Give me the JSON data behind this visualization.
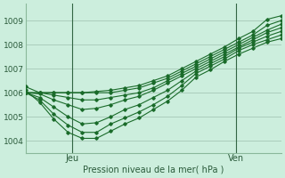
{
  "title": "Pression niveau de la mer( hPa )",
  "bg_color": "#cceedd",
  "grid_color": "#aaccbb",
  "line_color": "#1a6b2a",
  "vline_color": "#336644",
  "ylim": [
    1003.5,
    1009.7
  ],
  "xlim": [
    0,
    18
  ],
  "jeu_x": 3.3,
  "ven_x": 14.8,
  "series": [
    [
      1006.25,
      1006.0,
      1006.0,
      1006.0,
      1006.0,
      1006.05,
      1006.1,
      1006.2,
      1006.3,
      1006.5,
      1006.7,
      1007.0,
      1007.3,
      1007.6,
      1007.9,
      1008.25,
      1008.55,
      1009.05,
      1009.2
    ],
    [
      1006.0,
      1006.0,
      1006.0,
      1006.0,
      1006.0,
      1006.0,
      1006.0,
      1006.1,
      1006.2,
      1006.4,
      1006.6,
      1006.9,
      1007.2,
      1007.5,
      1007.8,
      1008.1,
      1008.4,
      1008.8,
      1009.0
    ],
    [
      1006.0,
      1006.0,
      1005.9,
      1005.8,
      1005.7,
      1005.7,
      1005.8,
      1005.9,
      1006.0,
      1006.2,
      1006.5,
      1006.8,
      1007.1,
      1007.4,
      1007.7,
      1008.0,
      1008.3,
      1008.6,
      1008.85
    ],
    [
      1006.0,
      1005.95,
      1005.7,
      1005.5,
      1005.3,
      1005.35,
      1005.5,
      1005.7,
      1005.85,
      1006.1,
      1006.4,
      1006.7,
      1007.0,
      1007.3,
      1007.6,
      1007.9,
      1008.2,
      1008.5,
      1008.7
    ],
    [
      1006.0,
      1005.8,
      1005.4,
      1005.0,
      1004.7,
      1004.75,
      1005.0,
      1005.3,
      1005.5,
      1005.8,
      1006.1,
      1006.5,
      1006.9,
      1007.2,
      1007.5,
      1007.85,
      1008.1,
      1008.35,
      1008.55
    ],
    [
      1006.0,
      1005.7,
      1005.1,
      1004.65,
      1004.35,
      1004.35,
      1004.7,
      1004.95,
      1005.2,
      1005.5,
      1005.85,
      1006.3,
      1006.8,
      1007.1,
      1007.4,
      1007.75,
      1008.0,
      1008.2,
      1008.4
    ],
    [
      1006.1,
      1005.6,
      1004.9,
      1004.35,
      1004.1,
      1004.1,
      1004.4,
      1004.7,
      1004.95,
      1005.3,
      1005.65,
      1006.1,
      1006.65,
      1006.95,
      1007.3,
      1007.6,
      1007.85,
      1008.1,
      1008.25
    ]
  ],
  "yticks": [
    1004,
    1005,
    1006,
    1007,
    1008,
    1009
  ],
  "jeu_label": "Jeu",
  "ven_label": "Ven"
}
